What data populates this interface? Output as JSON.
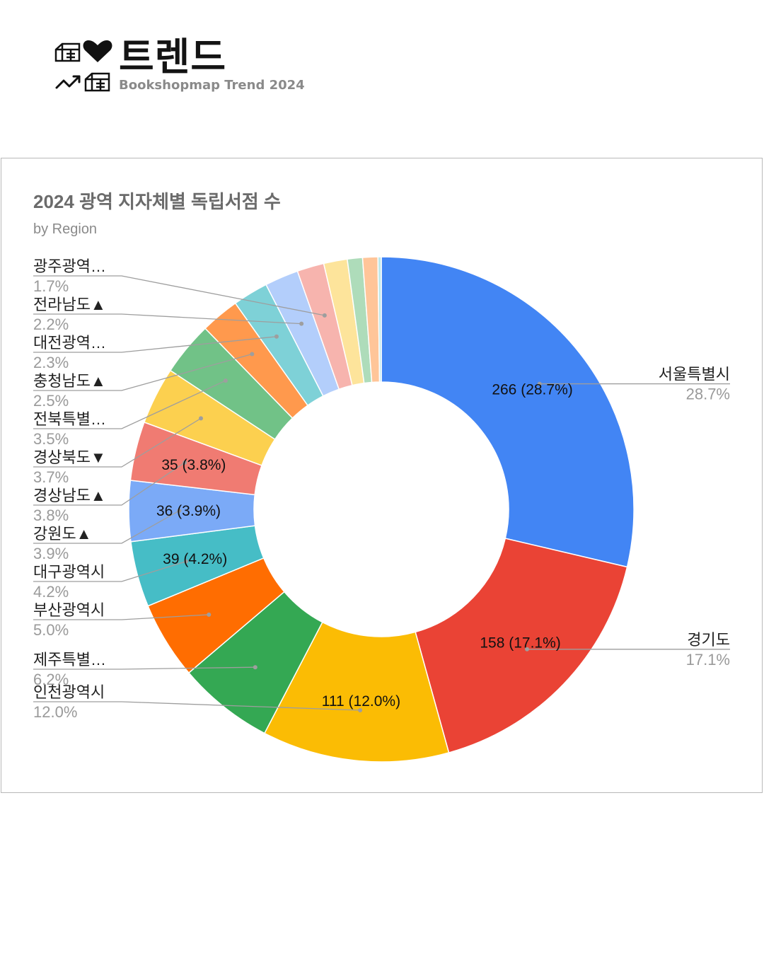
{
  "brand": {
    "title": "트렌드",
    "subtitle": "Bookshopmap Trend 2024",
    "icons": [
      "bookshop-icon",
      "heart-icon",
      "trend-arrow-icon",
      "bookshop-icon"
    ]
  },
  "chart_data": {
    "type": "pie",
    "donut": true,
    "title": "2024 광역 지자체별 독립서점 수",
    "subtitle": "by Region",
    "legend": "none",
    "slices": [
      {
        "label": "서울특별시",
        "value": 266,
        "percent": "28.7%",
        "color": "#4285F4",
        "data_label": "266 (28.7%)"
      },
      {
        "label": "경기도",
        "value": 158,
        "percent": "17.1%",
        "color": "#EA4335",
        "data_label": "158 (17.1%)"
      },
      {
        "label": "인천광역시",
        "value": 111,
        "percent": "12.0%",
        "color": "#FBBC04",
        "data_label": "111 (12.0%)"
      },
      {
        "label": "제주특별…",
        "value": 57,
        "percent": "6.2%",
        "color": "#34A853",
        "data_label": ""
      },
      {
        "label": "부산광역시",
        "value": 46,
        "percent": "5.0%",
        "color": "#FF6D01",
        "data_label": ""
      },
      {
        "label": "대구광역시",
        "value": 39,
        "percent": "4.2%",
        "color": "#46BDC6",
        "data_label": "39 (4.2%)"
      },
      {
        "label": "강원도▲",
        "value": 36,
        "percent": "3.9%",
        "color": "#7BAAF7",
        "data_label": "36 (3.9%)"
      },
      {
        "label": "경상남도▲",
        "value": 35,
        "percent": "3.8%",
        "color": "#F07B72",
        "data_label": "35 (3.8%)"
      },
      {
        "label": "경상북도▼",
        "value": 34,
        "percent": "3.7%",
        "color": "#FCD04F",
        "data_label": ""
      },
      {
        "label": "전북특별…",
        "value": 32,
        "percent": "3.5%",
        "color": "#71C287",
        "data_label": ""
      },
      {
        "label": "충청남도▲",
        "value": 23,
        "percent": "2.5%",
        "color": "#FF994D",
        "data_label": ""
      },
      {
        "label": "대전광역…",
        "value": 21,
        "percent": "2.3%",
        "color": "#7ED1D7",
        "data_label": ""
      },
      {
        "label": "전라남도▲",
        "value": 20,
        "percent": "2.2%",
        "color": "#B3CEFB",
        "data_label": ""
      },
      {
        "label": "광주광역…",
        "value": 16,
        "percent": "1.7%",
        "color": "#F7B4AE",
        "data_label": ""
      },
      {
        "label": "",
        "value": 14,
        "percent": "",
        "color": "#FDE49B",
        "data_label": ""
      },
      {
        "label": "",
        "value": 9,
        "percent": "",
        "color": "#AEDCBA",
        "data_label": ""
      },
      {
        "label": "",
        "value": 9,
        "percent": "",
        "color": "#FFC599",
        "data_label": ""
      },
      {
        "label": "",
        "value": 2,
        "percent": "",
        "color": "#BEE8EB",
        "data_label": ""
      }
    ]
  }
}
